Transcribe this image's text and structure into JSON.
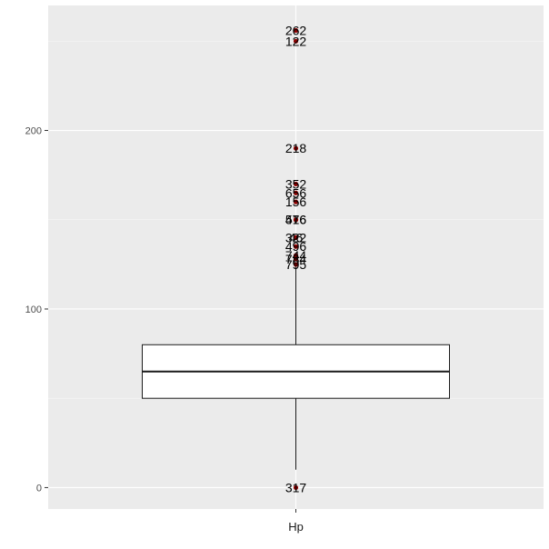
{
  "chart_data": {
    "type": "boxplot",
    "title": "",
    "xlabel": "",
    "ylabel": "",
    "categories": [
      "Hp"
    ],
    "ylim": [
      -12,
      270
    ],
    "yticks": [
      0,
      100,
      200
    ],
    "grid": true,
    "box": {
      "min": 10,
      "q1": 50,
      "median": 65,
      "q3": 80,
      "max": 125
    },
    "outliers": [
      {
        "value": 256,
        "label": "262"
      },
      {
        "value": 250,
        "label": "122"
      },
      {
        "value": 190,
        "label": "218"
      },
      {
        "value": 170,
        "label": "352"
      },
      {
        "value": 165,
        "label": "656"
      },
      {
        "value": 160,
        "label": "156"
      },
      {
        "value": 150,
        "label": "476"
      },
      {
        "value": 150,
        "label": "516"
      },
      {
        "value": 140,
        "label": "322"
      },
      {
        "value": 140,
        "label": "46"
      },
      {
        "value": 135,
        "label": "496"
      },
      {
        "value": 130,
        "label": "744"
      },
      {
        "value": 128,
        "label": "784"
      },
      {
        "value": 125,
        "label": "795"
      },
      {
        "value": 0,
        "label": "317"
      }
    ],
    "colors": {
      "panel": "#ebebeb",
      "grid_major": "#ffffff",
      "box_fill": "#ffffff",
      "box_line": "#1a1a1a",
      "outlier": "#8b0000"
    }
  }
}
